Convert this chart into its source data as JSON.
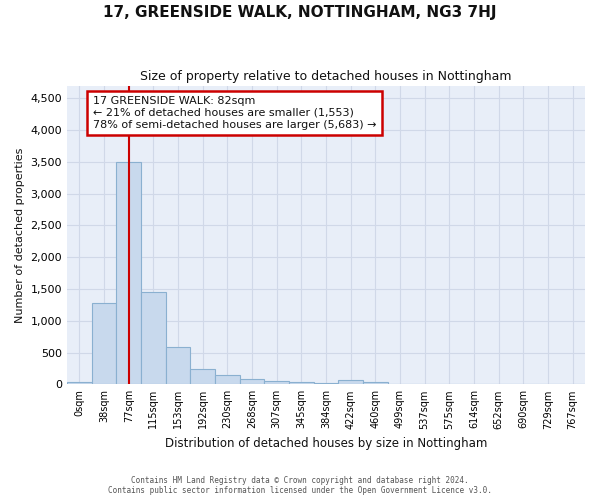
{
  "title": "17, GREENSIDE WALK, NOTTINGHAM, NG3 7HJ",
  "subtitle": "Size of property relative to detached houses in Nottingham",
  "xlabel": "Distribution of detached houses by size in Nottingham",
  "ylabel": "Number of detached properties",
  "bar_labels": [
    "0sqm",
    "38sqm",
    "77sqm",
    "115sqm",
    "153sqm",
    "192sqm",
    "230sqm",
    "268sqm",
    "307sqm",
    "345sqm",
    "384sqm",
    "422sqm",
    "460sqm",
    "499sqm",
    "537sqm",
    "575sqm",
    "614sqm",
    "652sqm",
    "690sqm",
    "729sqm",
    "767sqm"
  ],
  "bar_values": [
    30,
    1280,
    3500,
    1460,
    580,
    240,
    140,
    80,
    50,
    35,
    25,
    60,
    30,
    0,
    0,
    0,
    0,
    0,
    0,
    0,
    0
  ],
  "bar_color": "#c8d9ed",
  "bar_edge_color": "#8ab0d0",
  "grid_color": "#d0d8e8",
  "background_color": "#e8eef8",
  "annotation_line1": "17 GREENSIDE WALK: 82sqm",
  "annotation_line2": "← 21% of detached houses are smaller (1,553)",
  "annotation_line3": "78% of semi-detached houses are larger (5,683) →",
  "annotation_box_edgecolor": "#cc0000",
  "property_line_color": "#cc0000",
  "property_line_x": 2.0,
  "footer_line1": "Contains HM Land Registry data © Crown copyright and database right 2024.",
  "footer_line2": "Contains public sector information licensed under the Open Government Licence v3.0.",
  "ylim": [
    0,
    4700
  ],
  "yticks": [
    0,
    500,
    1000,
    1500,
    2000,
    2500,
    3000,
    3500,
    4000,
    4500
  ]
}
